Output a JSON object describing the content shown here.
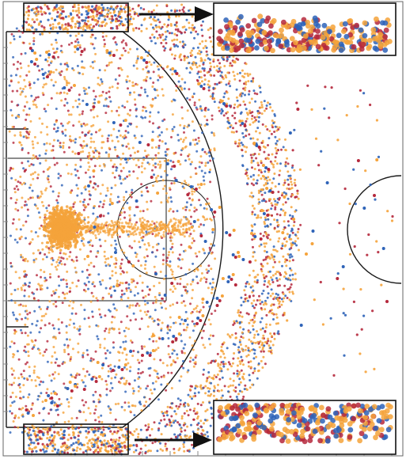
{
  "chart_data": {
    "type": "scatter",
    "title": "",
    "xlabel": "",
    "ylabel": "",
    "xlim": [
      0,
      47
    ],
    "ylim": [
      0,
      50
    ],
    "grid": false,
    "legend": "none",
    "description_key_points_only": true,
    "series": [
      {
        "color": "#2e63b8",
        "x": [
          2.6,
          3.1,
          5.4,
          8.2,
          11.5,
          14.8,
          18.6,
          21.3,
          23.9,
          26.4,
          28.2,
          29.6,
          30.7,
          31.4,
          30.9,
          29.8,
          28.1,
          25.9,
          23.2,
          20.1,
          16.4,
          12.3,
          8.5,
          5.1,
          3.0,
          4.4,
          6.9,
          9.6,
          12.8,
          15.9,
          19.2,
          22.0,
          24.4,
          26.2,
          27.0,
          26.5,
          25.1,
          22.8,
          19.9,
          16.8,
          13.4,
          10.2,
          7.3,
          5.0,
          10.5,
          13.0,
          15.5,
          17.8,
          20.2,
          22.4,
          23.7,
          14.2,
          18.9,
          9.8,
          36.5,
          38.2,
          40.1,
          42.6,
          44.9,
          33.8,
          35.1
        ],
        "y": [
          1.8,
          47.6,
          3.1,
          5.4,
          7.9,
          9.6,
          11.2,
          13.5,
          15.8,
          18.4,
          21.2,
          24.1,
          27.0,
          29.9,
          32.8,
          35.6,
          38.4,
          40.9,
          43.1,
          45.0,
          46.4,
          47.3,
          47.8,
          47.1,
          46.2,
          44.6,
          42.9,
          40.8,
          38.5,
          36.0,
          33.3,
          30.4,
          27.5,
          24.6,
          21.8,
          19.0,
          16.3,
          13.8,
          11.5,
          9.4,
          7.6,
          6.1,
          4.9,
          4.0,
          25.3,
          22.1,
          28.6,
          19.4,
          31.2,
          26.0,
          23.5,
          33.9,
          16.7,
          30.5,
          24.8,
          30.9,
          20.3,
          27.7,
          22.6,
          37.2,
          12.9
        ]
      },
      {
        "color": "#b5283c",
        "x": [
          2.4,
          2.9,
          6.1,
          9.3,
          12.7,
          16.2,
          19.8,
          22.7,
          25.1,
          27.3,
          29.0,
          30.3,
          31.1,
          31.7,
          31.2,
          30.1,
          28.4,
          26.2,
          23.5,
          20.3,
          16.7,
          12.8,
          9.0,
          5.6,
          3.4,
          4.9,
          7.5,
          10.4,
          13.6,
          16.9,
          20.0,
          22.6,
          24.8,
          26.6,
          27.3,
          26.8,
          25.4,
          23.1,
          20.2,
          17.1,
          13.8,
          10.7,
          7.8,
          5.4,
          11.2,
          14.6,
          17.3,
          19.7,
          21.6,
          23.2,
          8.6,
          39.4,
          41.9,
          45.3,
          34.7,
          43.8
        ],
        "y": [
          2.2,
          47.9,
          2.7,
          4.8,
          7.2,
          9.1,
          10.8,
          13.1,
          15.4,
          18.0,
          20.9,
          23.8,
          26.8,
          29.7,
          32.6,
          35.4,
          38.1,
          40.6,
          42.8,
          44.7,
          46.1,
          47.0,
          47.5,
          46.8,
          45.9,
          44.3,
          42.6,
          40.5,
          38.2,
          35.7,
          33.0,
          30.1,
          27.2,
          24.3,
          21.5,
          18.7,
          16.0,
          13.5,
          11.2,
          9.1,
          7.3,
          5.8,
          4.6,
          3.7,
          26.7,
          20.9,
          31.6,
          18.2,
          29.4,
          24.2,
          34.6,
          18.8,
          33.7,
          15.9,
          40.2,
          29.3
        ]
      },
      {
        "color": "#f5a33b",
        "x": [
          3.2,
          3.4,
          4.7,
          7.6,
          10.9,
          14.1,
          17.5,
          20.6,
          23.4,
          25.8,
          27.7,
          29.2,
          30.4,
          31.0,
          30.6,
          29.5,
          27.8,
          25.6,
          22.9,
          19.8,
          16.1,
          12.0,
          8.2,
          4.8,
          3.6,
          5.3,
          8.1,
          11.0,
          14.2,
          17.4,
          20.5,
          23.2,
          25.4,
          27.1,
          27.6,
          27.0,
          25.7,
          23.4,
          20.6,
          17.5,
          14.2,
          11.1,
          8.2,
          5.8,
          4.5,
          5.2,
          6.8,
          8.9,
          11.3,
          13.9,
          16.2,
          18.4,
          20.3,
          22.1,
          24.6,
          6.2,
          7.9,
          9.7,
          12.6,
          15.1,
          18.0,
          21.8,
          10.4,
          13.2,
          32.9,
          34.2,
          36.4,
          44.1,
          33.1,
          35.7
        ],
        "y": [
          1.5,
          47.3,
          3.4,
          5.7,
          8.2,
          9.9,
          11.6,
          13.9,
          16.2,
          18.8,
          21.6,
          24.5,
          27.4,
          30.2,
          33.1,
          35.9,
          38.7,
          41.2,
          43.4,
          45.3,
          46.7,
          47.6,
          48.1,
          47.4,
          46.5,
          44.9,
          43.2,
          41.1,
          38.8,
          36.3,
          33.6,
          30.7,
          27.8,
          24.9,
          22.1,
          19.3,
          16.6,
          14.1,
          11.8,
          9.7,
          7.9,
          6.4,
          5.2,
          4.3,
          25.0,
          25.6,
          24.5,
          25.9,
          25.2,
          24.7,
          25.4,
          25.1,
          24.9,
          25.3,
          25.0,
          23.4,
          27.1,
          21.6,
          28.3,
          20.4,
          29.6,
          22.8,
          32.4,
          17.9,
          24.6,
          26.3,
          23.2,
          33.8,
          29.1,
          21.9
        ]
      }
    ]
  },
  "colors": {
    "blue": "#2e63b8",
    "red": "#b5283c",
    "orange": "#f5a33b",
    "lines": "#1a1a1a"
  }
}
